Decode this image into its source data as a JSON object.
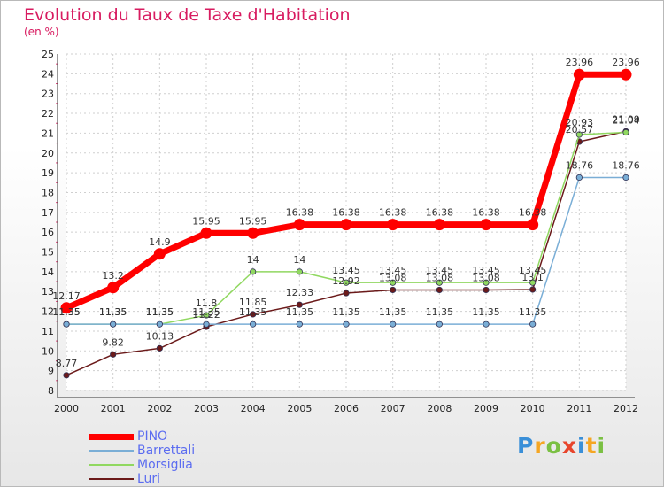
{
  "chart_data": {
    "type": "line",
    "title": "Evolution du Taux de Taxe d'Habitation",
    "subtitle": "(en %)",
    "x": [
      "2000",
      "2001",
      "2002",
      "2003",
      "2004",
      "2005",
      "2006",
      "2007",
      "2008",
      "2009",
      "2010",
      "2011",
      "2012"
    ],
    "ylim": [
      8,
      25
    ],
    "yticks": [
      "8",
      "9",
      "10",
      "11",
      "12",
      "13",
      "14",
      "15",
      "16",
      "17",
      "18",
      "19",
      "20",
      "21",
      "22",
      "23",
      "24",
      "25"
    ],
    "grid": true,
    "legend_position": "bottom-left",
    "series": [
      {
        "name": "PINO",
        "color": "#ff0000",
        "values": [
          12.17,
          13.2,
          14.9,
          15.95,
          15.95,
          16.38,
          16.38,
          16.38,
          16.38,
          16.38,
          16.38,
          23.96,
          23.96
        ],
        "labels": [
          "12.17",
          "13.2",
          "14.9",
          "15.95",
          "15.95",
          "16.38",
          "16.38",
          "16.38",
          "16.38",
          "16.38",
          "16.38",
          "23.96",
          "23.96"
        ]
      },
      {
        "name": "Barrettali",
        "color": "#7aaed6",
        "values": [
          11.35,
          11.35,
          11.35,
          11.35,
          11.35,
          11.35,
          11.35,
          11.35,
          11.35,
          11.35,
          11.35,
          18.76,
          18.76
        ],
        "labels": [
          "11.35",
          "11.35",
          "11.35",
          "11.35",
          "11.35",
          "11.35",
          "11.35",
          "11.35",
          "11.35",
          "11.35",
          "11.35",
          "18.76",
          "18.76"
        ]
      },
      {
        "name": "Morsiglia",
        "color": "#90d860",
        "values": [
          11.35,
          11.35,
          11.35,
          11.8,
          14,
          14,
          13.45,
          13.45,
          13.45,
          13.45,
          13.45,
          20.93,
          21.04
        ],
        "labels": [
          "11.35",
          "11.35",
          "11.35",
          "11.8",
          "14",
          "14",
          "13.45",
          "13.45",
          "13.45",
          "13.45",
          "13.45",
          "20.93",
          "21.04"
        ]
      },
      {
        "name": "Luri",
        "color": "#6b1a1a",
        "values": [
          8.77,
          9.82,
          10.13,
          11.22,
          11.85,
          12.33,
          12.92,
          13.08,
          13.08,
          13.08,
          13.1,
          20.57,
          21.09
        ],
        "labels": [
          "8.77",
          "9.82",
          "10.13",
          "11.22",
          "11.85",
          "12.33",
          "12.92",
          "13.08",
          "13.08",
          "13.08",
          "13.1",
          "20.57",
          "21.09"
        ]
      }
    ]
  },
  "logo": {
    "letters": [
      "P",
      "r",
      "o",
      "x",
      "i",
      "t",
      "i"
    ],
    "colors": [
      "#3a8fd8",
      "#f5a623",
      "#7bc043",
      "#e8452c",
      "#3a8fd8",
      "#f5a623",
      "#7bc043"
    ]
  }
}
